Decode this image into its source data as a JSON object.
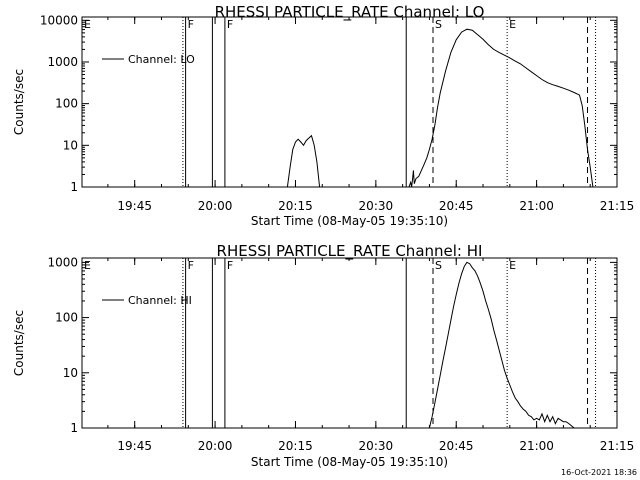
{
  "chart_data": [
    {
      "type": "line",
      "title": "RHESSI PARTICLE_RATE Channel: LO",
      "xlabel": "Start Time (08-May-05 19:35:10)",
      "ylabel": "Counts/sec",
      "xlim": [
        "19:35:10",
        "21:15:00"
      ],
      "ylim": [
        1,
        12000
      ],
      "yscale": "log",
      "grid": false,
      "legend_position": "top-left",
      "x_ticks": [
        "19:45",
        "20:00",
        "20:15",
        "20:30",
        "20:45",
        "21:00",
        "21:15"
      ],
      "y_ticks": [
        "1",
        "10",
        "100",
        "1000",
        "10000"
      ],
      "series": [
        {
          "name": "Channel: LO",
          "x": [
            "20:13:30",
            "20:14:00",
            "20:14:30",
            "20:15:00",
            "20:15:30",
            "20:16:00",
            "20:16:30",
            "20:17:00",
            "20:17:30",
            "20:18:00",
            "20:18:30",
            "20:19:00",
            "20:19:30",
            "20:36:10",
            "20:36:30",
            "20:36:40",
            "20:36:50",
            "20:37:00",
            "20:37:10",
            "20:37:30",
            "20:38:00",
            "20:38:30",
            "20:39:00",
            "20:39:30",
            "20:40:00",
            "20:40:30",
            "20:41:00",
            "20:41:30",
            "20:42:00",
            "20:43:00",
            "20:44:00",
            "20:45:00",
            "20:46:00",
            "20:47:00",
            "20:48:00",
            "20:49:00",
            "20:50:00",
            "20:51:00",
            "20:52:00",
            "20:53:00",
            "20:54:00",
            "20:55:00",
            "20:56:00",
            "20:57:00",
            "20:58:00",
            "20:59:00",
            "21:00:00",
            "21:01:00",
            "21:02:00",
            "21:03:00",
            "21:04:00",
            "21:05:00",
            "21:06:00",
            "21:07:00",
            "21:08:00",
            "21:08:30",
            "21:09:00",
            "21:09:30",
            "21:10:00",
            "21:10:30"
          ],
          "values": [
            1,
            3,
            8,
            12,
            14,
            12,
            10,
            13,
            15,
            17,
            10,
            4,
            1,
            1,
            1.3,
            1,
            1.5,
            2.5,
            1.2,
            1.6,
            1.8,
            2.5,
            3.5,
            5,
            8,
            14,
            30,
            80,
            180,
            600,
            1700,
            3400,
            5200,
            6100,
            5800,
            4500,
            3500,
            2600,
            2000,
            1700,
            1450,
            1250,
            1050,
            900,
            720,
            580,
            470,
            380,
            320,
            285,
            260,
            235,
            210,
            185,
            160,
            90,
            30,
            8,
            3,
            1
          ]
        }
      ],
      "markers": [
        {
          "time": "19:35:10",
          "style": "dotted",
          "label": "E"
        },
        {
          "time": "19:54:00",
          "style": "dotted",
          "label": ""
        },
        {
          "time": "19:54:30",
          "style": "solid",
          "label": "F"
        },
        {
          "time": "19:59:30",
          "style": "solid",
          "label": ""
        },
        {
          "time": "20:01:50",
          "style": "solid",
          "label": "F"
        },
        {
          "time": "20:35:40",
          "style": "solid",
          "label": ""
        },
        {
          "time": "20:40:40",
          "style": "dashed",
          "label": "S"
        },
        {
          "time": "20:54:30",
          "style": "dotted",
          "label": "E"
        },
        {
          "time": "21:09:30",
          "style": "dashed",
          "label": ""
        },
        {
          "time": "21:11:00",
          "style": "dotted",
          "label": ""
        }
      ]
    },
    {
      "type": "line",
      "title": "RHESSI PARTICLE_RATE Channel: HI",
      "xlabel": "Start Time (08-May-05 19:35:10)",
      "ylabel": "Counts/sec",
      "xlim": [
        "19:35:10",
        "21:15:00"
      ],
      "ylim": [
        1,
        1200
      ],
      "yscale": "log",
      "grid": false,
      "legend_position": "top-left",
      "x_ticks": [
        "19:45",
        "20:00",
        "20:15",
        "20:30",
        "20:45",
        "21:00",
        "21:15"
      ],
      "y_ticks": [
        "1",
        "10",
        "100",
        "1000"
      ],
      "series": [
        {
          "name": "Channel: HI",
          "x": [
            "20:40:00",
            "20:40:30",
            "20:41:00",
            "20:41:30",
            "20:42:00",
            "20:42:30",
            "20:43:00",
            "20:43:30",
            "20:44:00",
            "20:44:30",
            "20:45:00",
            "20:45:30",
            "20:46:00",
            "20:46:30",
            "20:47:00",
            "20:47:30",
            "20:48:00",
            "20:48:30",
            "20:49:00",
            "20:49:30",
            "20:50:00",
            "20:50:30",
            "20:51:00",
            "20:51:30",
            "20:52:00",
            "20:52:30",
            "20:53:00",
            "20:53:30",
            "20:54:00",
            "20:54:30",
            "20:55:00",
            "20:55:30",
            "20:56:00",
            "20:56:30",
            "20:57:00",
            "20:57:30",
            "20:58:00",
            "20:58:30",
            "20:59:00",
            "20:59:30",
            "21:00:00",
            "21:00:30",
            "21:01:00",
            "21:01:30",
            "21:02:00",
            "21:02:30",
            "21:03:00",
            "21:03:30",
            "21:04:00",
            "21:04:30",
            "21:05:00",
            "21:05:30",
            "21:06:00",
            "21:06:30",
            "21:07:00"
          ],
          "values": [
            1,
            1.6,
            2.8,
            5,
            9,
            16,
            28,
            50,
            90,
            160,
            260,
            420,
            620,
            850,
            1000,
            950,
            800,
            700,
            560,
            420,
            300,
            200,
            140,
            95,
            60,
            40,
            26,
            17,
            11,
            8,
            6,
            4.5,
            3.5,
            3,
            2.5,
            2.2,
            2.0,
            1.7,
            1.6,
            1.4,
            1.5,
            1.4,
            1.8,
            1.3,
            1.7,
            1.3,
            1.6,
            1.2,
            1.5,
            1.4,
            1.3,
            1.3,
            1.2,
            1.1,
            1
          ]
        }
      ],
      "markers": [
        {
          "time": "19:35:10",
          "style": "dotted",
          "label": "E"
        },
        {
          "time": "19:54:00",
          "style": "dotted",
          "label": ""
        },
        {
          "time": "19:54:30",
          "style": "solid",
          "label": "F"
        },
        {
          "time": "19:59:30",
          "style": "solid",
          "label": ""
        },
        {
          "time": "20:01:50",
          "style": "solid",
          "label": "F"
        },
        {
          "time": "20:35:40",
          "style": "solid",
          "label": ""
        },
        {
          "time": "20:40:40",
          "style": "dashed",
          "label": "S"
        },
        {
          "time": "20:54:30",
          "style": "dotted",
          "label": "E"
        },
        {
          "time": "21:09:30",
          "style": "dashed",
          "label": ""
        },
        {
          "time": "21:11:00",
          "style": "dotted",
          "label": ""
        }
      ]
    }
  ],
  "timestamp": "16-Oct-2021 18:36",
  "colors": {
    "background": "#ffffff",
    "foreground": "#000000"
  }
}
